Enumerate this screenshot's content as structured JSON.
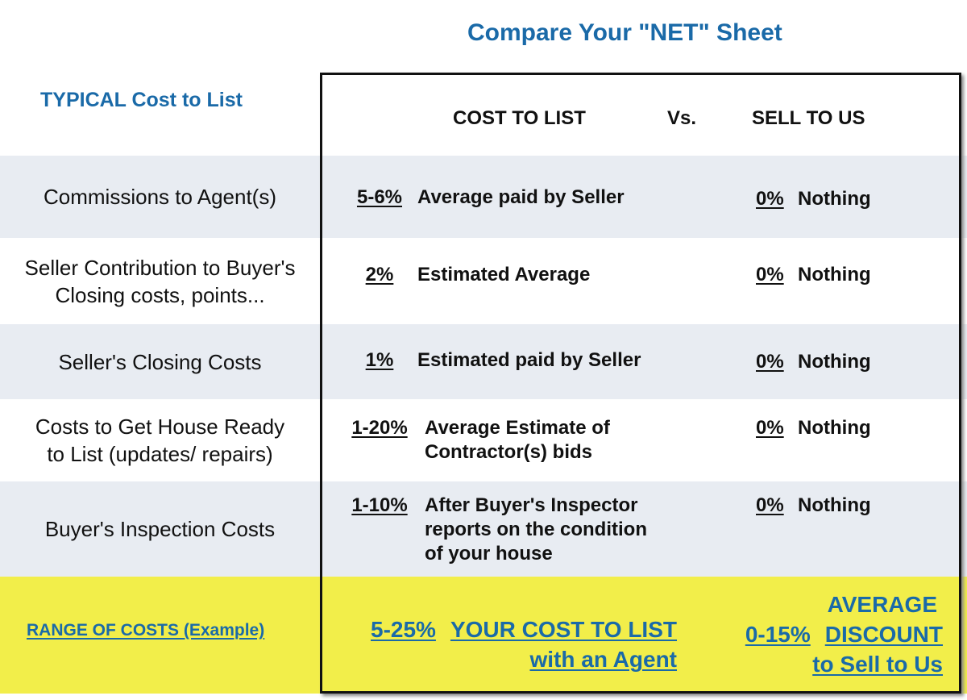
{
  "title": "Compare Your \"NET\" Sheet",
  "left_heading": "TYPICAL Cost to List",
  "columns": [
    "COST TO LIST",
    "Vs.",
    "SELL TO US"
  ],
  "rows": [
    {
      "label": [
        "Commissions to Agent(s)"
      ],
      "list_pct": "5-6%",
      "list_note": [
        "Average paid by Seller"
      ],
      "us_pct": "0%",
      "us_note": "Nothing"
    },
    {
      "label": [
        "Seller Contribution to Buyer's",
        "Closing costs, points..."
      ],
      "list_pct": "2%",
      "list_note": [
        "Estimated Average"
      ],
      "us_pct": "0%",
      "us_note": "Nothing"
    },
    {
      "label": [
        "Seller's Closing Costs"
      ],
      "list_pct": "1%",
      "list_note": [
        "Estimated paid by Seller"
      ],
      "us_pct": "0%",
      "us_note": "Nothing"
    },
    {
      "label": [
        "Costs to Get House Ready",
        "to List (updates/ repairs)"
      ],
      "list_pct": "1-20%",
      "list_note": [
        "Average Estimate of",
        "Contractor(s) bids"
      ],
      "us_pct": "0%",
      "us_note": "Nothing"
    },
    {
      "label": [
        "Buyer's Inspection Costs"
      ],
      "list_pct": "1-10%",
      "list_note": [
        "After Buyer's Inspector",
        "reports on the condition",
        "of your house"
      ],
      "us_pct": "0%",
      "us_note": "Nothing"
    }
  ],
  "summary": {
    "label": "RANGE OF COSTS (Example)",
    "list_pct": "5-25%",
    "list_lines": [
      "YOUR COST TO LIST",
      "with an Agent"
    ],
    "us_pct": "0-15%",
    "us_lines": [
      "AVERAGE",
      "DISCOUNT",
      "to Sell to Us"
    ]
  }
}
